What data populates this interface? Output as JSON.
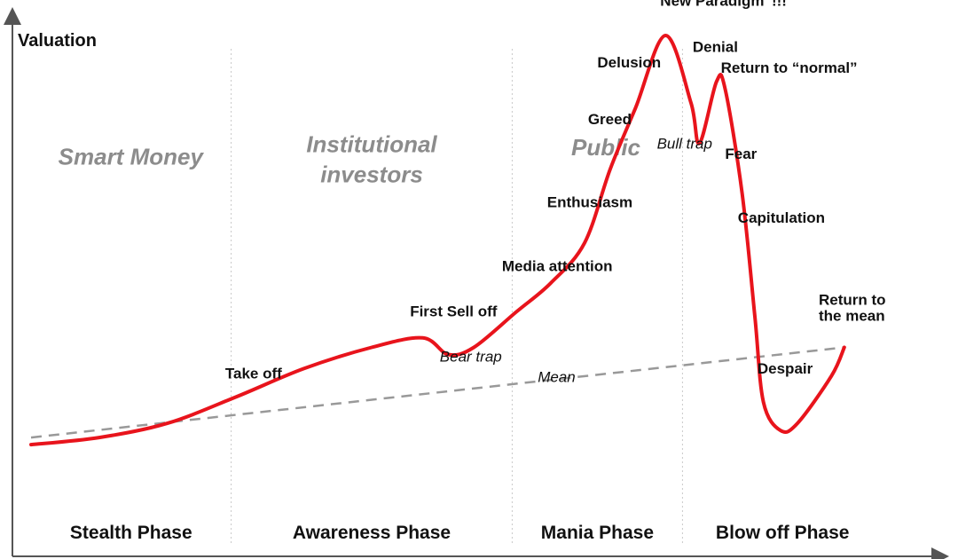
{
  "chart_data": {
    "type": "line",
    "title": "",
    "ylabel": "Valuation",
    "xlabel": "",
    "grid": false,
    "legend": "none",
    "colors": {
      "curve": "#e8141c",
      "mean": "#999999",
      "axis": "#555555",
      "divider": "#c8c8c8",
      "group_text": "#8c8c8c"
    },
    "x_range": [
      0,
      100
    ],
    "y_range": [
      0,
      100
    ],
    "phases": [
      {
        "label": "Stealth Phase",
        "start": 0,
        "end": 23.5
      },
      {
        "label": "Awareness Phase",
        "start": 23.5,
        "end": 56.5
      },
      {
        "label": "Mania Phase",
        "start": 56.5,
        "end": 76.5
      },
      {
        "label": "Blow off Phase",
        "start": 76.5,
        "end": 100
      }
    ],
    "groups": [
      {
        "label": "Smart Money",
        "x": 11.7,
        "y": 70
      },
      {
        "label": "Institutional investors",
        "x": 40,
        "y": 70
      },
      {
        "label": "Public",
        "x": 67.5,
        "y": 72
      }
    ],
    "series": [
      {
        "values": [
          [
            0,
            11
          ],
          [
            8,
            12.5
          ],
          [
            16,
            15.5
          ],
          [
            24,
            21
          ],
          [
            32,
            27
          ],
          [
            40,
            31.5
          ],
          [
            46,
            33.5
          ],
          [
            49,
            30
          ],
          [
            52,
            31.5
          ],
          [
            57,
            39
          ],
          [
            61,
            45
          ],
          [
            65,
            53.5
          ],
          [
            68,
            69
          ],
          [
            71,
            82
          ],
          [
            74.5,
            97.2
          ],
          [
            77.5,
            83
          ],
          [
            78.5,
            74.5
          ],
          [
            80.5,
            87.5
          ],
          [
            81.5,
            86
          ],
          [
            83.5,
            64
          ],
          [
            85,
            38
          ],
          [
            86,
            20
          ],
          [
            88,
            14
          ],
          [
            90,
            15.5
          ],
          [
            94,
            25.5
          ],
          [
            95.5,
            31.5
          ]
        ]
      },
      {
        "values": [
          [
            0,
            12.5
          ],
          [
            95.5,
            31.5
          ]
        ]
      }
    ],
    "annotations": [
      {
        "text": "Take off",
        "x": 22.8,
        "y": 25,
        "style": "normal"
      },
      {
        "text": "First Sell off",
        "x": 44.5,
        "y": 38,
        "style": "normal"
      },
      {
        "text": "Bear trap",
        "x": 48,
        "y": 28.5,
        "style": "italic"
      },
      {
        "text": "Mean",
        "x": 59.5,
        "y": 24.2,
        "style": "italic"
      },
      {
        "text": "Media attention",
        "x": 55.3,
        "y": 47.6,
        "style": "normal"
      },
      {
        "text": "Enthusiasm",
        "x": 60.6,
        "y": 61,
        "style": "normal"
      },
      {
        "text": "Greed",
        "x": 65.4,
        "y": 78.5,
        "style": "normal"
      },
      {
        "text": "Delusion",
        "x": 66.5,
        "y": 90.5,
        "style": "normal"
      },
      {
        "text": "“New Paradigm”!!!",
        "x": 73,
        "y": 103.5,
        "style": "normal"
      },
      {
        "text": "Denial",
        "x": 77.7,
        "y": 93.7,
        "style": "normal"
      },
      {
        "text": "Return to “normal”",
        "x": 81,
        "y": 89.3,
        "style": "normal"
      },
      {
        "text": "Bull trap",
        "x": 73.5,
        "y": 73.4,
        "style": "italic"
      },
      {
        "text": "Fear",
        "x": 81.5,
        "y": 71.2,
        "style": "normal"
      },
      {
        "text": "Capitulation",
        "x": 83,
        "y": 57.8,
        "style": "normal"
      },
      {
        "text": "Return to",
        "x": 92.5,
        "y": 40.5,
        "style": "normal"
      },
      {
        "text": "the mean",
        "x": 92.5,
        "y": 37.1,
        "style": "normal"
      },
      {
        "text": "Despair",
        "x": 85.3,
        "y": 26,
        "style": "normal"
      }
    ]
  }
}
